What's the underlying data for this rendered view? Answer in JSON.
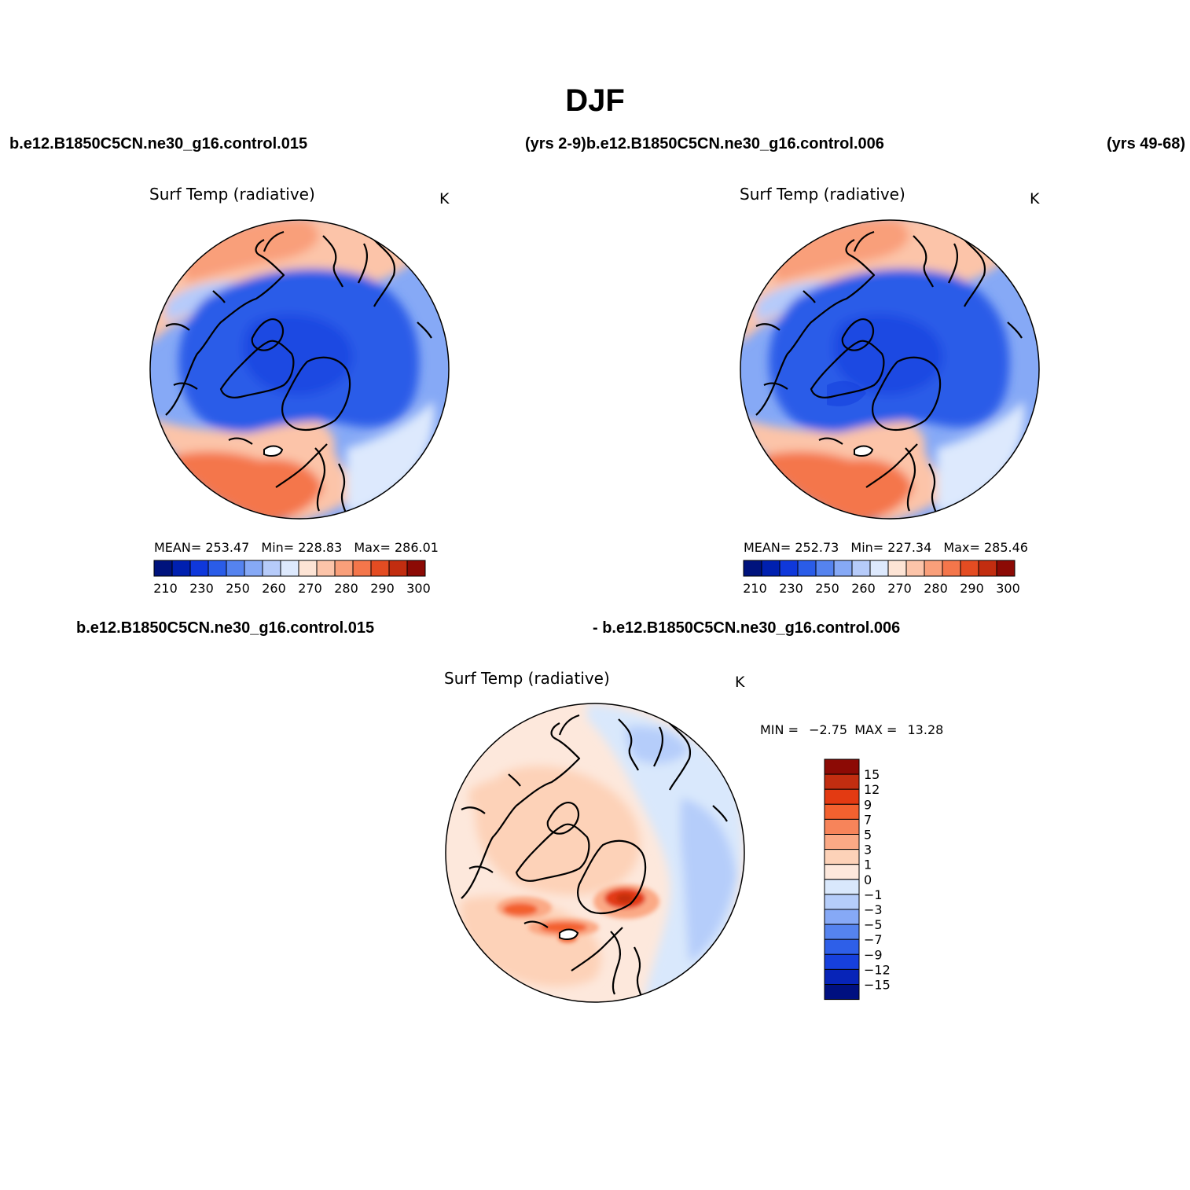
{
  "title": "DJF",
  "top_left_case": "b.e12.B1850C5CN.ne30_g16.control.015",
  "top_middle_case": "(yrs 2-9)b.e12.B1850C5CN.ne30_g16.control.006",
  "top_right_case": "(yrs 49-68)",
  "diff_left_case": "b.e12.B1850C5CN.ne30_g16.control.015",
  "diff_right_case": "- b.e12.B1850C5CN.ne30_g16.control.006",
  "panels": [
    {
      "id": "case1",
      "title": "Surf Temp (radiative)",
      "units": "K",
      "stats": {
        "mean_label": "MEAN=",
        "mean": "253.47",
        "min_label": "Min=",
        "min": "228.83",
        "max_label": "Max=",
        "max": "286.01"
      },
      "colorbar_ticks": [
        "210",
        "230",
        "250",
        "260",
        "270",
        "280",
        "290",
        "300"
      ]
    },
    {
      "id": "case2",
      "title": "Surf Temp (radiative)",
      "units": "K",
      "stats": {
        "mean_label": "MEAN=",
        "mean": "252.73",
        "min_label": "Min=",
        "min": "227.34",
        "max_label": "Max=",
        "max": "285.46"
      },
      "colorbar_ticks": [
        "210",
        "230",
        "250",
        "260",
        "270",
        "280",
        "290",
        "300"
      ]
    },
    {
      "id": "difference",
      "title": "Surf Temp (radiative)",
      "units": "K",
      "minmax": {
        "min_label": "MIN =",
        "min": "−2.75",
        "max_label": "MAX =",
        "max": "13.28"
      },
      "colorbar_ticks": [
        "15",
        "12",
        "9",
        "7",
        "5",
        "3",
        "1",
        "0",
        "−1",
        "−3",
        "−5",
        "−7",
        "−9",
        "−12",
        "−15"
      ]
    }
  ],
  "colors": {
    "abs_scale": [
      "#00137d",
      "#0020b0",
      "#0f38db",
      "#2a5ce8",
      "#5583ef",
      "#86a9f6",
      "#b6cbfa",
      "#dde9fd",
      "#fde4d5",
      "#fcc4a9",
      "#f99f7a",
      "#f4764b",
      "#e44c22",
      "#c22d10",
      "#8c0a05"
    ],
    "diff_scale": [
      "#8c0a05",
      "#c22d10",
      "#e33a12",
      "#f3612f",
      "#f7845a",
      "#fba985",
      "#fdd2b8",
      "#fde8dc",
      "#d9e8fc",
      "#b5cdfa",
      "#86a9f6",
      "#5583ef",
      "#2e5fe8",
      "#1640dd",
      "#0724b8",
      "#001080"
    ]
  }
}
